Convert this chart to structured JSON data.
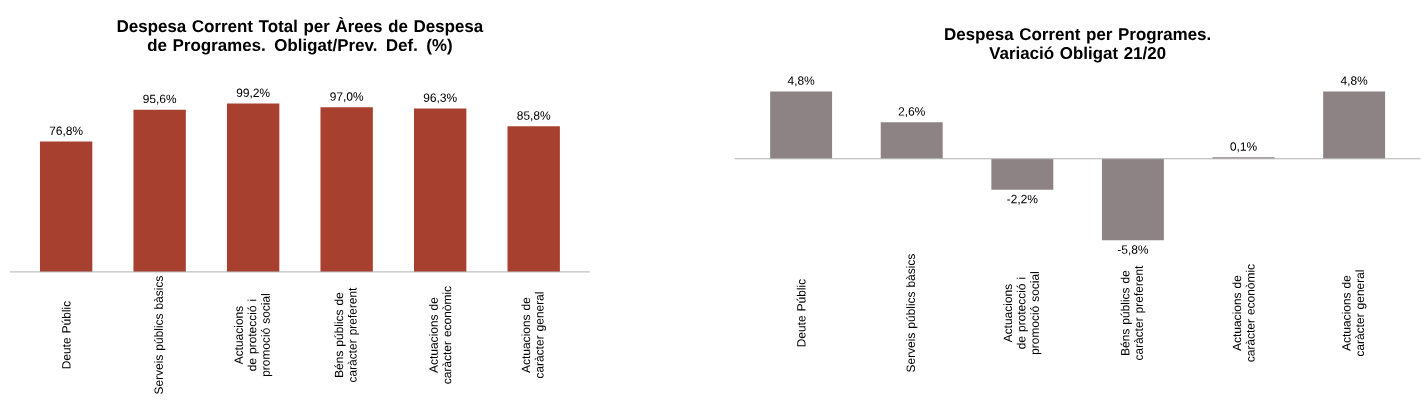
{
  "chart_data": [
    {
      "type": "bar",
      "title": "Despesa Corrent Total per Àrees de Despesa de Programes. Obligat/Prev. Def. (%)",
      "categories": [
        "Deute Públic",
        "Serveis públics bàsics",
        "Actuacions de protecció i promoció social",
        "Béns públics de caràcter preferent",
        "Actuacions de caràcter econòmic",
        "Actuacions de caràcter general"
      ],
      "values": [
        76.8,
        95.6,
        99.2,
        97.0,
        96.3,
        85.8
      ],
      "value_labels": [
        "76,8%",
        "95,6%",
        "99,2%",
        "97,0%",
        "96,3%",
        "85,8%"
      ],
      "color": "#a8402f"
    },
    {
      "type": "bar",
      "title": "Despesa Corrent per Programes. Variació Obligat 21/20",
      "categories": [
        "Deute Públic",
        "Serveis públics bàsics",
        "Actuacions de protecció i promoció social",
        "Béns públics de caràcter preferent",
        "Actuacions de caràcter econòmic",
        "Actuacions de caràcter general"
      ],
      "values": [
        4.8,
        2.6,
        -2.2,
        -5.8,
        0.1,
        4.8
      ],
      "value_labels": [
        "4,8%",
        "2,6%",
        "-2,2%",
        "-5,8%",
        "0,1%",
        "4,8%"
      ],
      "color": "#8e8384"
    }
  ]
}
